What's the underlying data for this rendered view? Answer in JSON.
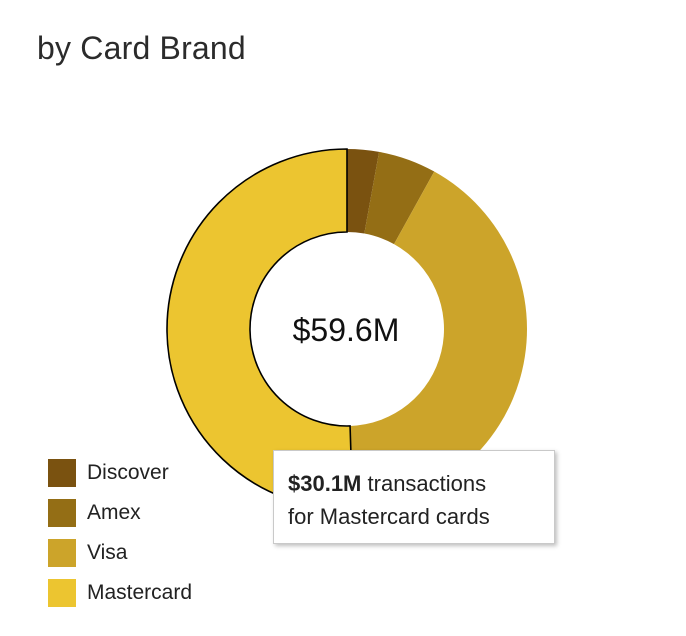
{
  "title": "by Card Brand",
  "chart_data": {
    "type": "pie",
    "variant": "donut",
    "center_label": "$59.6M",
    "slices": [
      {
        "name": "Discover",
        "value": 1.7,
        "color": "#7a5210"
      },
      {
        "name": "Amex",
        "value": 3.1,
        "color": "#946e15"
      },
      {
        "name": "Visa",
        "value": 24.7,
        "color": "#cca42a"
      },
      {
        "name": "Mastercard",
        "value": 30.1,
        "color": "#ecc530"
      }
    ],
    "highlighted": "Mastercard",
    "legend_position": "bottom-left"
  },
  "tooltip": {
    "value": "$30.1M",
    "line1_rest": "transactions",
    "line2": "for Mastercard cards"
  }
}
